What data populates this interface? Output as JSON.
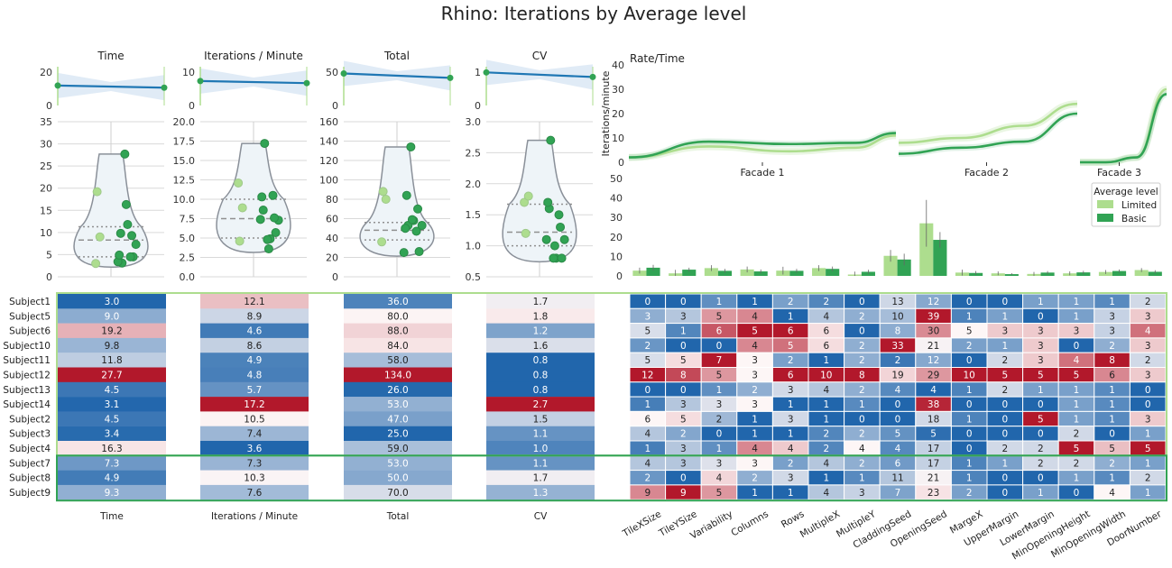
{
  "title": "Rhino: Iterations by Average level",
  "colors": {
    "limited": "#addd8e",
    "basic": "#31a354",
    "trend": "#1f77b4",
    "trend_band": "#c6dbef",
    "heat_low": "#2166ac",
    "heat_mid": "#fdf6f6",
    "heat_high": "#b2182b"
  },
  "chart_data": [
    {
      "type": "line",
      "id": "trend",
      "panels": [
        {
          "title": "Time",
          "y_start": 10.3,
          "y_end": 9.2,
          "yticks": [
            "20",
            "0"
          ],
          "ylim": [
            0,
            20
          ]
        },
        {
          "title": "Iterations / Minute",
          "y_start": 8.2,
          "y_end": 7.5,
          "yticks": [
            "10",
            "0"
          ],
          "ylim": [
            0,
            13
          ]
        },
        {
          "title": "Total",
          "y_start": 66,
          "y_end": 57,
          "yticks": [
            "50",
            "0"
          ],
          "ylim": [
            0,
            80
          ]
        },
        {
          "title": "CV",
          "y_start": 1.45,
          "y_end": 1.25,
          "yticks": [
            "1",
            "0"
          ],
          "ylim": [
            0,
            1.7
          ]
        }
      ]
    },
    {
      "type": "scatter",
      "id": "violins",
      "panels": [
        {
          "metric": "Time",
          "ylim": [
            0,
            35
          ],
          "yticks": [
            "0",
            "5",
            "10",
            "15",
            "20",
            "25",
            "30",
            "35"
          ],
          "quartiles": [
            4.5,
            8.3,
            11.3
          ],
          "limited": [
            3.0,
            9.0,
            19.2
          ],
          "basic": [
            9.8,
            11.8,
            27.7,
            4.5,
            3.1,
            4.5,
            3.4,
            16.3,
            7.3,
            4.9,
            9.3
          ]
        },
        {
          "metric": "Iterations / Minute",
          "ylim": [
            0,
            20
          ],
          "yticks": [
            "0.0",
            "2.5",
            "5.0",
            "7.5",
            "10.0",
            "12.5",
            "15.0",
            "17.5",
            "20.0"
          ],
          "quartiles": [
            5.0,
            7.5,
            10.0
          ],
          "limited": [
            12.1,
            8.9,
            4.6
          ],
          "basic": [
            8.6,
            4.9,
            4.8,
            5.7,
            17.2,
            10.5,
            7.4,
            3.6,
            7.3,
            10.3,
            7.6
          ]
        },
        {
          "metric": "Total",
          "ylim": [
            0,
            160
          ],
          "yticks": [
            "0",
            "20",
            "40",
            "60",
            "80",
            "100",
            "120",
            "140",
            "160"
          ],
          "quartiles": [
            38,
            48,
            56
          ],
          "limited": [
            36,
            80,
            88
          ],
          "basic": [
            84,
            58,
            134,
            26,
            53,
            47,
            25,
            59,
            53,
            50,
            70
          ]
        },
        {
          "metric": "CV",
          "ylim": [
            0.5,
            3.0
          ],
          "yticks": [
            "0.5",
            "1.0",
            "1.5",
            "2.0",
            "2.5",
            "3.0"
          ],
          "quartiles": [
            1.0,
            1.22,
            1.67
          ],
          "limited": [
            1.7,
            1.8,
            1.2
          ],
          "basic": [
            1.6,
            0.8,
            0.8,
            0.8,
            2.7,
            1.5,
            1.1,
            1.0,
            1.1,
            1.7,
            1.3
          ]
        }
      ]
    },
    {
      "type": "line",
      "id": "rate_time",
      "title": "Rate/Time",
      "ylabel": "Iterations/minute",
      "ylim": [
        0,
        40
      ],
      "yticks": [
        "0",
        "10",
        "20",
        "30",
        "40"
      ],
      "facets": [
        {
          "label": "Facade 1",
          "limited": [
            [
              0,
              2
            ],
            [
              0.3,
              6.5
            ],
            [
              0.6,
              4.5
            ],
            [
              0.85,
              6
            ],
            [
              1,
              11
            ]
          ],
          "basic": [
            [
              0,
              2
            ],
            [
              0.3,
              8.5
            ],
            [
              0.6,
              7.5
            ],
            [
              0.85,
              8
            ],
            [
              1,
              12
            ]
          ]
        },
        {
          "label": "Facade 2",
          "limited": [
            [
              0,
              8
            ],
            [
              0.35,
              10
            ],
            [
              0.7,
              15
            ],
            [
              1,
              24
            ]
          ],
          "basic": [
            [
              0,
              3.5
            ],
            [
              0.35,
              6
            ],
            [
              0.7,
              8.5
            ],
            [
              1,
              20
            ]
          ]
        },
        {
          "label": "Facade 3",
          "limited": [
            [
              0,
              0
            ],
            [
              0.3,
              0
            ],
            [
              0.65,
              2
            ],
            [
              1,
              30
            ]
          ],
          "basic": [
            [
              0,
              0
            ],
            [
              0.3,
              0
            ],
            [
              0.65,
              2
            ],
            [
              1,
              28
            ]
          ]
        }
      ]
    },
    {
      "type": "bar",
      "id": "bars",
      "ylim": [
        0,
        50
      ],
      "yticks": [
        "0",
        "10",
        "20",
        "30",
        "40",
        "50"
      ],
      "legend_title": "Average level",
      "legend_position": "right",
      "categories": [
        "TileXSize",
        "TileYSize",
        "Variability",
        "Columns",
        "Rows",
        "MultipleX",
        "MultipleY",
        "CladdingSeed",
        "OpeningSeed",
        "MargeX",
        "UpperMargin",
        "LowerMargin",
        "MinOpeningHeight",
        "MinOpeningWidth",
        "DoorNumber"
      ],
      "series": [
        {
          "name": "Limited",
          "values": [
            2.7,
            1.3,
            4.0,
            3.3,
            2.7,
            4.0,
            0.7,
            10.3,
            27.0,
            1.7,
            1.3,
            1.0,
            1.3,
            2.0,
            3.0
          ]
        },
        {
          "name": "Basic",
          "values": [
            4.2,
            3.2,
            2.6,
            2.3,
            2.6,
            3.6,
            2.1,
            8.4,
            18.5,
            1.5,
            0.9,
            1.7,
            1.8,
            2.5,
            2.1
          ]
        }
      ],
      "errors": [
        [
          1.5,
          1.8,
          1.5,
          1.5,
          2.0,
          1.5,
          1.5,
          3.0,
          12.0,
          1.5,
          1.0,
          1.0,
          1.0,
          1.0,
          1.0
        ],
        [
          1.5,
          1.0,
          1.0,
          1.0,
          1.0,
          1.2,
          1.0,
          3.0,
          4.0,
          1.0,
          0.5,
          0.8,
          0.8,
          0.8,
          0.8
        ]
      ]
    },
    {
      "type": "heatmap",
      "id": "metric_table",
      "subjects": [
        "Subject1",
        "Subject5",
        "Subject6",
        "Subject10",
        "Subject11",
        "Subject12",
        "Subject13",
        "Subject14",
        "Subject2",
        "Subject3",
        "Subject4",
        "Subject7",
        "Subject8",
        "Subject9"
      ],
      "group_split": 11,
      "columns": [
        "Time",
        "Iterations / Minute",
        "Total",
        "CV"
      ],
      "values": [
        [
          3.0,
          12.1,
          36.0,
          1.7
        ],
        [
          9.0,
          8.9,
          80.0,
          1.8
        ],
        [
          19.2,
          4.6,
          88.0,
          1.2
        ],
        [
          9.8,
          8.6,
          84.0,
          1.6
        ],
        [
          11.8,
          4.9,
          58.0,
          0.8
        ],
        [
          27.7,
          4.8,
          134.0,
          0.8
        ],
        [
          4.5,
          5.7,
          26.0,
          0.8
        ],
        [
          3.1,
          17.2,
          53.0,
          2.7
        ],
        [
          4.5,
          10.5,
          47.0,
          1.5
        ],
        [
          3.4,
          7.4,
          25.0,
          1.1
        ],
        [
          16.3,
          3.6,
          59.0,
          1.0
        ],
        [
          7.3,
          7.3,
          53.0,
          1.1
        ],
        [
          4.9,
          10.3,
          50.0,
          1.7
        ],
        [
          9.3,
          7.6,
          70.0,
          1.3
        ]
      ]
    },
    {
      "type": "heatmap",
      "id": "param_table",
      "columns": [
        "TileXSize",
        "TileYSize",
        "Variability",
        "Columns",
        "Rows",
        "MultipleX",
        "MultipleY",
        "CladdingSeed",
        "OpeningSeed",
        "MargeX",
        "UpperMargin",
        "LowerMargin",
        "MinOpeningHeight",
        "MinOpeningWidth",
        "DoorNumber"
      ],
      "values": [
        [
          0,
          0,
          1,
          1,
          2,
          2,
          0,
          13,
          12,
          0,
          0,
          1,
          1,
          1,
          2
        ],
        [
          3,
          3,
          5,
          4,
          1,
          4,
          2,
          10,
          39,
          1,
          1,
          0,
          1,
          3,
          3
        ],
        [
          5,
          1,
          6,
          5,
          6,
          6,
          0,
          8,
          30,
          5,
          3,
          3,
          3,
          3,
          4
        ],
        [
          2,
          0,
          0,
          4,
          5,
          6,
          2,
          33,
          21,
          2,
          1,
          3,
          0,
          2,
          3
        ],
        [
          5,
          5,
          7,
          3,
          2,
          1,
          2,
          2,
          12,
          0,
          2,
          3,
          4,
          8,
          2
        ],
        [
          12,
          8,
          5,
          3,
          6,
          10,
          8,
          19,
          29,
          10,
          5,
          5,
          5,
          6,
          3
        ],
        [
          0,
          0,
          1,
          2,
          3,
          4,
          2,
          4,
          4,
          1,
          2,
          1,
          1,
          1,
          0
        ],
        [
          1,
          3,
          3,
          3,
          1,
          1,
          1,
          0,
          38,
          0,
          0,
          0,
          1,
          1,
          0
        ],
        [
          6,
          5,
          2,
          1,
          3,
          1,
          0,
          0,
          18,
          1,
          0,
          5,
          1,
          1,
          3
        ],
        [
          4,
          2,
          0,
          1,
          1,
          2,
          2,
          5,
          5,
          0,
          0,
          0,
          2,
          0,
          1
        ],
        [
          1,
          3,
          1,
          4,
          4,
          2,
          4,
          4,
          17,
          0,
          2,
          2,
          5,
          5,
          5
        ],
        [
          4,
          3,
          3,
          3,
          2,
          4,
          2,
          6,
          17,
          1,
          1,
          2,
          2,
          2,
          1
        ],
        [
          2,
          0,
          4,
          2,
          3,
          1,
          1,
          11,
          21,
          1,
          0,
          0,
          1,
          1,
          2
        ],
        [
          9,
          9,
          5,
          1,
          1,
          4,
          3,
          7,
          23,
          2,
          0,
          1,
          0,
          4,
          1
        ]
      ]
    }
  ]
}
